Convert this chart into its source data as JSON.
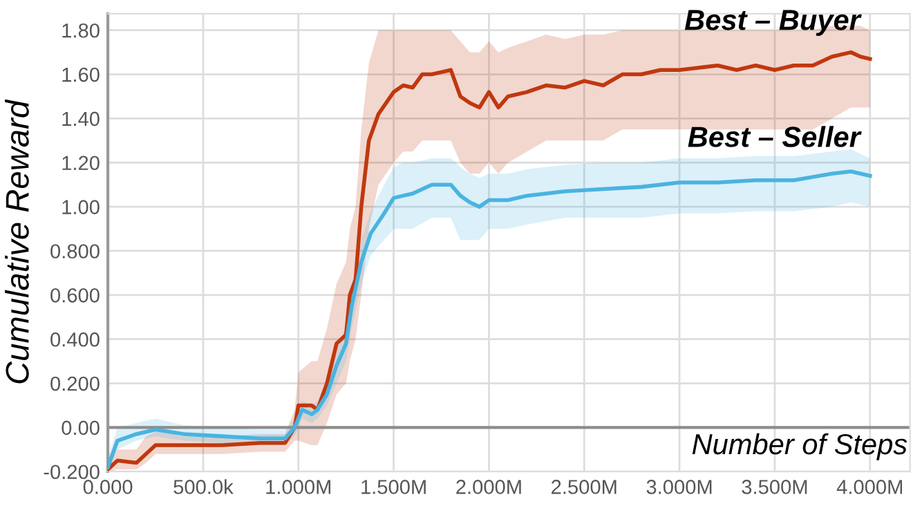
{
  "chart_data": {
    "type": "line",
    "xlabel": "Number of Steps",
    "ylabel": "Cumulative Reward",
    "xlim": [
      0,
      4210000
    ],
    "ylim": [
      -0.2,
      1.875
    ],
    "xticks": [
      {
        "value": 0,
        "label": "0.000"
      },
      {
        "value": 500000,
        "label": "500.0k"
      },
      {
        "value": 1000000,
        "label": "1.000M"
      },
      {
        "value": 1500000,
        "label": "1.500M"
      },
      {
        "value": 2000000,
        "label": "2.000M"
      },
      {
        "value": 2500000,
        "label": "2.500M"
      },
      {
        "value": 3000000,
        "label": "3.000M"
      },
      {
        "value": 3500000,
        "label": "3.500M"
      },
      {
        "value": 4000000,
        "label": "4.000M"
      }
    ],
    "yticks": [
      {
        "value": -0.2,
        "label": "-0.200"
      },
      {
        "value": 0,
        "label": "0.00"
      },
      {
        "value": 0.2,
        "label": "0.200"
      },
      {
        "value": 0.4,
        "label": "0.400"
      },
      {
        "value": 0.6,
        "label": "0.600"
      },
      {
        "value": 0.8,
        "label": "0.800"
      },
      {
        "value": 1,
        "label": "1.00"
      },
      {
        "value": 1.2,
        "label": "1.20"
      },
      {
        "value": 1.4,
        "label": "1.40"
      },
      {
        "value": 1.6,
        "label": "1.60"
      },
      {
        "value": 1.8,
        "label": "1.80"
      }
    ],
    "grid": true,
    "legend": false,
    "ref_lines": [
      {
        "axis": "y",
        "value": 0,
        "label": null,
        "color": "#8c8c8c"
      }
    ],
    "series": [
      {
        "name": "Best – Buyer",
        "color": "#c0380e",
        "x": [
          0,
          50000,
          150000,
          200000,
          250000,
          400000,
          600000,
          800000,
          930000,
          980000,
          1000000,
          1070000,
          1100000,
          1150000,
          1200000,
          1250000,
          1270000,
          1300000,
          1330000,
          1370000,
          1420000,
          1500000,
          1550000,
          1600000,
          1650000,
          1700000,
          1750000,
          1800000,
          1850000,
          1900000,
          1950000,
          2000000,
          2050000,
          2100000,
          2200000,
          2300000,
          2400000,
          2500000,
          2600000,
          2700000,
          2800000,
          2900000,
          3000000,
          3100000,
          3200000,
          3300000,
          3400000,
          3500000,
          3600000,
          3700000,
          3800000,
          3900000,
          3950000,
          4000000
        ],
        "values": [
          -0.19,
          -0.15,
          -0.16,
          -0.12,
          -0.08,
          -0.08,
          -0.08,
          -0.07,
          -0.07,
          0.0,
          0.1,
          0.1,
          0.08,
          0.2,
          0.38,
          0.42,
          0.6,
          0.67,
          1.0,
          1.3,
          1.42,
          1.52,
          1.55,
          1.54,
          1.6,
          1.6,
          1.61,
          1.62,
          1.5,
          1.47,
          1.45,
          1.52,
          1.45,
          1.5,
          1.52,
          1.55,
          1.54,
          1.57,
          1.55,
          1.6,
          1.6,
          1.62,
          1.62,
          1.63,
          1.64,
          1.62,
          1.64,
          1.62,
          1.64,
          1.64,
          1.68,
          1.7,
          1.68,
          1.67
        ],
        "lower": [
          -0.2,
          -0.19,
          -0.19,
          -0.16,
          -0.12,
          -0.12,
          -0.12,
          -0.11,
          -0.11,
          -0.06,
          -0.06,
          -0.08,
          -0.08,
          0.02,
          0.15,
          0.2,
          0.3,
          0.4,
          0.6,
          0.9,
          1.1,
          1.2,
          1.25,
          1.25,
          1.3,
          1.3,
          1.3,
          1.3,
          1.2,
          1.15,
          1.15,
          1.2,
          1.15,
          1.2,
          1.25,
          1.3,
          1.3,
          1.3,
          1.3,
          1.35,
          1.35,
          1.35,
          1.35,
          1.35,
          1.35,
          1.35,
          1.35,
          1.35,
          1.35,
          1.35,
          1.4,
          1.45,
          1.45,
          1.45
        ],
        "upper": [
          -0.15,
          -0.1,
          -0.1,
          -0.04,
          -0.02,
          -0.04,
          -0.04,
          -0.03,
          -0.03,
          0.08,
          0.25,
          0.3,
          0.3,
          0.45,
          0.65,
          0.75,
          0.9,
          1.0,
          1.35,
          1.65,
          1.8,
          1.8,
          1.8,
          1.8,
          1.8,
          1.8,
          1.8,
          1.8,
          1.75,
          1.7,
          1.7,
          1.75,
          1.7,
          1.72,
          1.75,
          1.78,
          1.76,
          1.78,
          1.78,
          1.8,
          1.8,
          1.8,
          1.8,
          1.8,
          1.8,
          1.8,
          1.8,
          1.8,
          1.8,
          1.8,
          1.82,
          1.82,
          1.82,
          1.8
        ]
      },
      {
        "name": "Best – Seller",
        "color": "#4ab3e0",
        "x": [
          0,
          50000,
          150000,
          250000,
          400000,
          600000,
          800000,
          930000,
          980000,
          1020000,
          1070000,
          1100000,
          1150000,
          1200000,
          1250000,
          1280000,
          1330000,
          1380000,
          1450000,
          1500000,
          1550000,
          1600000,
          1700000,
          1800000,
          1850000,
          1900000,
          1950000,
          2000000,
          2100000,
          2200000,
          2400000,
          2600000,
          2800000,
          3000000,
          3200000,
          3400000,
          3600000,
          3800000,
          3900000,
          4000000
        ],
        "values": [
          -0.18,
          -0.06,
          -0.03,
          -0.01,
          -0.03,
          -0.04,
          -0.05,
          -0.05,
          0.0,
          0.08,
          0.06,
          0.08,
          0.15,
          0.28,
          0.38,
          0.55,
          0.75,
          0.88,
          0.97,
          1.04,
          1.05,
          1.06,
          1.1,
          1.1,
          1.05,
          1.02,
          1.0,
          1.03,
          1.03,
          1.05,
          1.07,
          1.08,
          1.09,
          1.11,
          1.11,
          1.12,
          1.12,
          1.15,
          1.16,
          1.14
        ],
        "lower": [
          -0.2,
          -0.1,
          -0.06,
          -0.04,
          -0.06,
          -0.07,
          -0.08,
          -0.08,
          -0.04,
          0.04,
          0.02,
          0.04,
          0.1,
          0.2,
          0.3,
          0.45,
          0.65,
          0.78,
          0.85,
          0.9,
          0.9,
          0.9,
          0.95,
          0.95,
          0.85,
          0.85,
          0.85,
          0.9,
          0.9,
          0.92,
          0.95,
          0.95,
          0.95,
          0.97,
          0.97,
          0.98,
          0.98,
          1.0,
          1.02,
          1.0
        ],
        "upper": [
          -0.14,
          0.0,
          0.02,
          0.04,
          0.01,
          0.0,
          -0.01,
          -0.01,
          0.04,
          0.12,
          0.1,
          0.12,
          0.22,
          0.36,
          0.46,
          0.65,
          0.85,
          0.98,
          1.1,
          1.18,
          1.2,
          1.2,
          1.22,
          1.22,
          1.18,
          1.15,
          1.13,
          1.15,
          1.15,
          1.17,
          1.19,
          1.2,
          1.2,
          1.22,
          1.22,
          1.23,
          1.23,
          1.25,
          1.26,
          1.22
        ]
      }
    ]
  }
}
